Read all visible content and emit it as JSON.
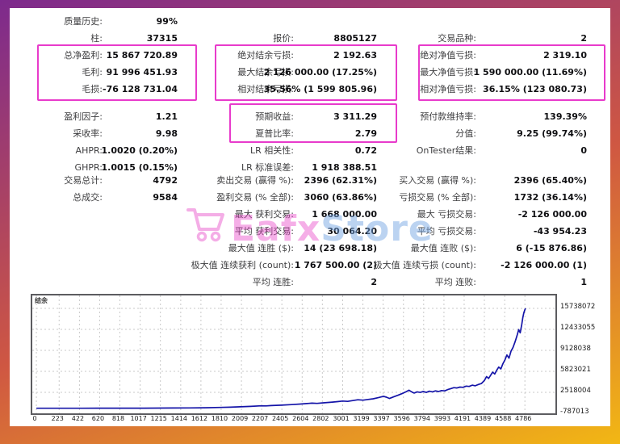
{
  "colors": {
    "border_top": "#7d2a8d",
    "border_mid": "#cf5742",
    "border_bottom": "#f2b714",
    "highlight": "#e83bcb",
    "curve": "#1414a8",
    "grid": "#c9c9c9"
  },
  "watermark": {
    "text_primary": "Eafx",
    "text_secondary": "Store",
    "icon": "cart-icon"
  },
  "stats": {
    "sections": [
      {
        "rows": [
          [
            "质量历史:",
            "99%",
            "",
            "",
            "",
            ""
          ],
          [
            "柱:",
            "37315",
            "报价:",
            "8805127",
            "交易品种:",
            "2"
          ],
          [
            "总净盈利:",
            "15 867 720.89",
            "绝对结余亏损:",
            "2 192.63",
            "绝对净值亏损:",
            "2 319.10"
          ],
          [
            "毛利:",
            "91 996 451.93",
            "最大结余亏损:",
            "2 126 000.00 (17.25%)",
            "最大净值亏损:",
            "1 590 000.00 (11.69%)"
          ],
          [
            "毛损:",
            "-76 128 731.04",
            "相对结余亏损:",
            "35.56% (1 599 805.96)",
            "相对净值亏损:",
            "36.15% (123 080.73)"
          ]
        ]
      },
      {
        "rows": [
          [
            "盈利因子:",
            "1.21",
            "预期收益:",
            "3 311.29",
            "预付款维持率:",
            "139.39%"
          ],
          [
            "采收率:",
            "9.98",
            "夏普比率:",
            "2.79",
            "分值:",
            "9.25 (99.74%)"
          ],
          [
            "AHPR:",
            "1.0020 (0.20%)",
            "LR 相关性:",
            "0.72",
            "OnTester结果:",
            "0"
          ],
          [
            "GHPR:",
            "1.0015 (0.15%)",
            "LR 标准误差:",
            "1 918 388.51",
            "",
            ""
          ]
        ]
      },
      {
        "rows": [
          [
            "交易总计:",
            "4792",
            "卖出交易 (赢得 %):",
            "2396 (62.31%)",
            "买入交易 (赢得 %):",
            "2396 (65.40%)"
          ],
          [
            "总成交:",
            "9584",
            "盈利交易 (% 全部):",
            "3060 (63.86%)",
            "亏损交易 (% 全部):",
            "1732 (36.14%)"
          ],
          [
            "",
            "",
            "最大 获利交易:",
            "1 668 000.00",
            "最大 亏损交易:",
            "-2 126 000.00"
          ],
          [
            "",
            "",
            "平均 获利交易:",
            "30 064.20",
            "平均 亏损交易:",
            "-43 954.23"
          ],
          [
            "",
            "",
            "最大值 连胜 ($):",
            "14 (23 698.18)",
            "最大值 连败 ($):",
            "6 (-15 876.86)"
          ],
          [
            "",
            "",
            "极大值 连续获利 (count):",
            "1 767 500.00 (2)",
            "极大值 连续亏损 (count):",
            "-2 126 000.00 (1)"
          ],
          [
            "",
            "",
            "平均 连胜:",
            "2",
            "平均 连败:",
            "1"
          ]
        ]
      }
    ]
  },
  "chart_data": {
    "type": "line",
    "title": "结余",
    "xlabel": "",
    "ylabel": "",
    "grid": "dashed",
    "xlim": [
      -40,
      5085
    ],
    "ylim": [
      -787013,
      17772000
    ],
    "x_ticks": [
      0,
      223,
      422,
      620,
      818,
      1017,
      1215,
      1414,
      1612,
      1810,
      2009,
      2207,
      2405,
      2604,
      2802,
      3001,
      3199,
      3397,
      3596,
      3794,
      3993,
      4191,
      4389,
      4588,
      4786
    ],
    "y_ticks": [
      15738072,
      12433055,
      9128038,
      5823021,
      2518004,
      -787013
    ],
    "series": [
      {
        "name": "结余",
        "points": [
          [
            0,
            12000
          ],
          [
            150,
            13000
          ],
          [
            300,
            16000
          ],
          [
            450,
            18000
          ],
          [
            600,
            22000
          ],
          [
            750,
            26000
          ],
          [
            900,
            32000
          ],
          [
            1050,
            30000
          ],
          [
            1200,
            38000
          ],
          [
            1350,
            48000
          ],
          [
            1500,
            60000
          ],
          [
            1650,
            90000
          ],
          [
            1800,
            140000
          ],
          [
            1900,
            180000
          ],
          [
            2000,
            240000
          ],
          [
            2100,
            310000
          ],
          [
            2200,
            400000
          ],
          [
            2250,
            380000
          ],
          [
            2300,
            430000
          ],
          [
            2400,
            500000
          ],
          [
            2500,
            580000
          ],
          [
            2600,
            690000
          ],
          [
            2650,
            750000
          ],
          [
            2700,
            820000
          ],
          [
            2750,
            780000
          ],
          [
            2800,
            850000
          ],
          [
            2850,
            920000
          ],
          [
            2900,
            980000
          ],
          [
            2950,
            1050000
          ],
          [
            3000,
            1150000
          ],
          [
            3050,
            1100000
          ],
          [
            3100,
            1220000
          ],
          [
            3150,
            1350000
          ],
          [
            3200,
            1280000
          ],
          [
            3250,
            1400000
          ],
          [
            3300,
            1500000
          ],
          [
            3350,
            1680000
          ],
          [
            3400,
            1900000
          ],
          [
            3430,
            1750000
          ],
          [
            3460,
            1550000
          ],
          [
            3500,
            1800000
          ],
          [
            3540,
            2050000
          ],
          [
            3580,
            2300000
          ],
          [
            3620,
            2600000
          ],
          [
            3650,
            2850000
          ],
          [
            3680,
            2550000
          ],
          [
            3700,
            2400000
          ],
          [
            3730,
            2600000
          ],
          [
            3760,
            2500000
          ],
          [
            3790,
            2650000
          ],
          [
            3820,
            2500000
          ],
          [
            3850,
            2700000
          ],
          [
            3880,
            2600000
          ],
          [
            3910,
            2750000
          ],
          [
            3940,
            2650000
          ],
          [
            3970,
            2800000
          ],
          [
            4000,
            2750000
          ],
          [
            4030,
            2950000
          ],
          [
            4060,
            3100000
          ],
          [
            4090,
            3250000
          ],
          [
            4120,
            3200000
          ],
          [
            4150,
            3350000
          ],
          [
            4180,
            3300000
          ],
          [
            4210,
            3500000
          ],
          [
            4240,
            3450000
          ],
          [
            4270,
            3650000
          ],
          [
            4300,
            3550000
          ],
          [
            4330,
            3750000
          ],
          [
            4360,
            3900000
          ],
          [
            4390,
            4400000
          ],
          [
            4410,
            5000000
          ],
          [
            4430,
            4700000
          ],
          [
            4450,
            5200000
          ],
          [
            4470,
            5700000
          ],
          [
            4490,
            5400000
          ],
          [
            4510,
            6000000
          ],
          [
            4530,
            6500000
          ],
          [
            4550,
            6200000
          ],
          [
            4570,
            7000000
          ],
          [
            4590,
            7600000
          ],
          [
            4610,
            8400000
          ],
          [
            4630,
            7900000
          ],
          [
            4650,
            9000000
          ],
          [
            4670,
            9600000
          ],
          [
            4690,
            10500000
          ],
          [
            4710,
            11500000
          ],
          [
            4725,
            12400000
          ],
          [
            4740,
            11900000
          ],
          [
            4755,
            13200000
          ],
          [
            4765,
            14200000
          ],
          [
            4775,
            15000000
          ],
          [
            4785,
            15500000
          ],
          [
            4792,
            15738072
          ]
        ]
      }
    ]
  }
}
